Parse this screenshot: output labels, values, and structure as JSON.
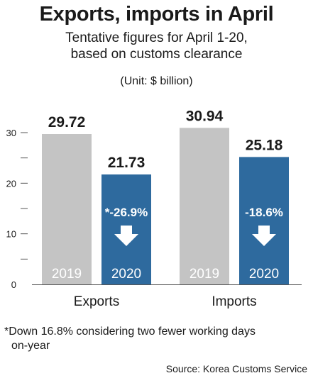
{
  "title": "Exports, imports in April",
  "subtitle_line1": "Tentative figures for April 1-20,",
  "subtitle_line2": "based on customs clearance",
  "unit": "(Unit: $ billion)",
  "footnote_line1": "*Down 16.8% considering two fewer working days",
  "footnote_line2": "on-year",
  "source": "Source: Korea Customs Service",
  "colors": {
    "y2019": "#c4c4c4",
    "y2020": "#2e6a9e",
    "axis": "#555555",
    "text": "#1a1a1a"
  },
  "chart_data": {
    "type": "bar",
    "categories": [
      "Exports",
      "Imports"
    ],
    "series": [
      {
        "name": "2019",
        "values": [
          29.72,
          30.94
        ]
      },
      {
        "name": "2020",
        "values": [
          21.73,
          25.18
        ]
      }
    ],
    "value_labels": {
      "2019": [
        "29.72",
        "30.94"
      ],
      "2020": [
        "21.73",
        "25.18"
      ]
    },
    "change_labels": [
      "*-26.9%",
      "-18.6%"
    ],
    "yticks": [
      0,
      10,
      20,
      30
    ],
    "ytick_labels": [
      "0",
      "10",
      "20",
      "30"
    ],
    "ylim": [
      0,
      30
    ],
    "grid": false
  }
}
